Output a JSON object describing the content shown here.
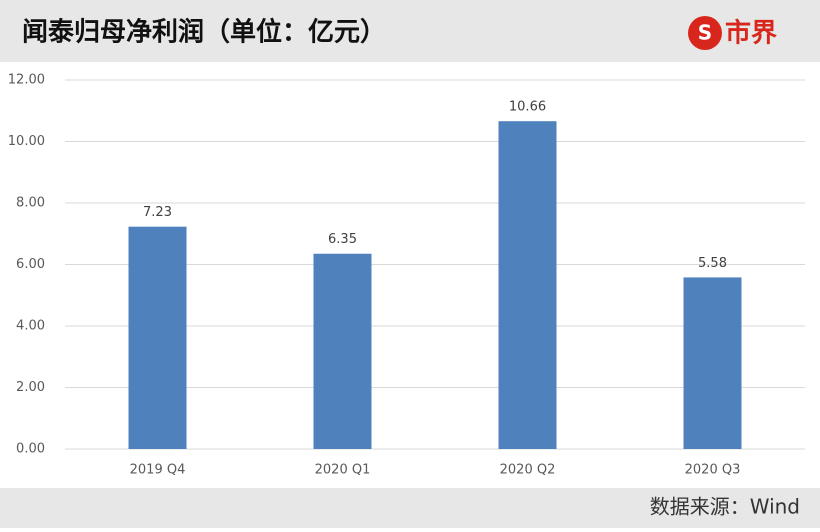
{
  "chart_data": {
    "type": "bar",
    "title": "闻泰归母净利润（单位：亿元）",
    "logo": "市界",
    "source": "数据来源：Wind",
    "categories": [
      "2019 Q4",
      "2020 Q1",
      "2020 Q2",
      "2020 Q3"
    ],
    "values": [
      7.23,
      6.35,
      10.66,
      5.58
    ],
    "color": "#4f81bd",
    "ylim": [
      0,
      12
    ],
    "yticks": [
      {
        "value": 0,
        "label": "0.00"
      },
      {
        "value": 2,
        "label": "2.00"
      },
      {
        "value": 4,
        "label": "4.00"
      },
      {
        "value": 6,
        "label": "6.00"
      },
      {
        "value": 8,
        "label": "8.00"
      },
      {
        "value": 10,
        "label": "10.00"
      },
      {
        "value": 12,
        "label": "12.00"
      }
    ],
    "grid": true
  }
}
